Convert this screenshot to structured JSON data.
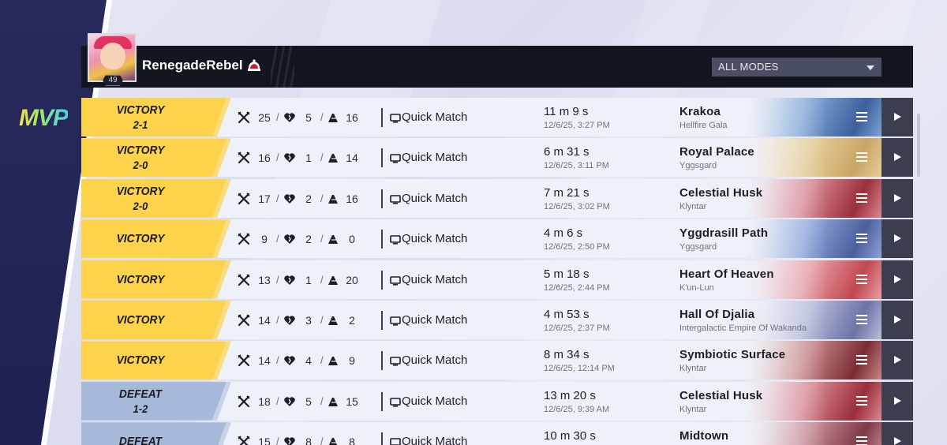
{
  "player": {
    "name": "RenegadeRebel",
    "level": "49",
    "avatar_icon": "hero-portrait-icon",
    "rank_icon": "rank-emblem-icon"
  },
  "mode_filter": {
    "selected": "ALL MODES"
  },
  "badge": {
    "mvp": "MVP"
  },
  "colors": {
    "victory": "#fcd34a",
    "defeat": "#a7b9d8",
    "header": "#14161f",
    "play_button": "#3b3e4e"
  },
  "matches": [
    {
      "result": "VICTORY",
      "score": "2-1",
      "kills": "25",
      "deaths": "5",
      "assists": "16",
      "mode": "Quick Match",
      "duration": "11 m 9 s",
      "date": "12/6/25, 3:27 PM",
      "map": "Krakoa",
      "region": "Hellfire Gala",
      "art": [
        "#c8dcf0",
        "#7fa6d6",
        "#3d5f9c"
      ]
    },
    {
      "result": "VICTORY",
      "score": "2-0",
      "kills": "16",
      "deaths": "1",
      "assists": "14",
      "mode": "Quick Match",
      "duration": "6 m 31 s",
      "date": "12/6/25, 3:11 PM",
      "map": "Royal Palace",
      "region": "Yggsgard",
      "art": [
        "#f5ecd6",
        "#e7cf9b",
        "#c9a564"
      ]
    },
    {
      "result": "VICTORY",
      "score": "2-0",
      "kills": "17",
      "deaths": "2",
      "assists": "16",
      "mode": "Quick Match",
      "duration": "7 m 21 s",
      "date": "12/6/25, 3:02 PM",
      "map": "Celestial Husk",
      "region": "Klyntar",
      "art": [
        "#f2d6da",
        "#d98a94",
        "#9b2f3c"
      ]
    },
    {
      "result": "VICTORY",
      "score": "",
      "kills": "9",
      "deaths": "2",
      "assists": "0",
      "mode": "Quick Match",
      "duration": "4 m 6 s",
      "date": "12/6/25, 2:50 PM",
      "map": "Yggdrasill Path",
      "region": "Yggsgard",
      "art": [
        "#d8e3f5",
        "#8ea6d8",
        "#4c5f9e"
      ]
    },
    {
      "result": "VICTORY",
      "score": "",
      "kills": "13",
      "deaths": "1",
      "assists": "20",
      "mode": "Quick Match",
      "duration": "5 m 18 s",
      "date": "12/6/25, 2:44 PM",
      "map": "Heart Of Heaven",
      "region": "K'un-Lun",
      "art": [
        "#f6e4ea",
        "#e9a0a8",
        "#c2474f"
      ]
    },
    {
      "result": "VICTORY",
      "score": "",
      "kills": "14",
      "deaths": "3",
      "assists": "2",
      "mode": "Quick Match",
      "duration": "4 m 53 s",
      "date": "12/6/25, 2:37 PM",
      "map": "Hall Of Djalia",
      "region": "Intergalactic Empire Of Wakanda",
      "art": [
        "#e6e8f4",
        "#b9bfdc",
        "#6d73a6"
      ]
    },
    {
      "result": "VICTORY",
      "score": "",
      "kills": "14",
      "deaths": "4",
      "assists": "9",
      "mode": "Quick Match",
      "duration": "8 m 34 s",
      "date": "12/6/25, 12:14 PM",
      "map": "Symbiotic Surface",
      "region": "Klyntar",
      "art": [
        "#efe0dc",
        "#c9898a",
        "#7a2c35"
      ]
    },
    {
      "result": "DEFEAT",
      "score": "1-2",
      "kills": "18",
      "deaths": "5",
      "assists": "15",
      "mode": "Quick Match",
      "duration": "13 m 20 s",
      "date": "12/6/25, 9:39 AM",
      "map": "Celestial Husk",
      "region": "Klyntar",
      "art": [
        "#f2d6da",
        "#d98a94",
        "#9b2f3c"
      ]
    },
    {
      "result": "DEFEAT",
      "score": "",
      "kills": "15",
      "deaths": "8",
      "assists": "8",
      "mode": "Quick Match",
      "duration": "10 m 30 s",
      "date": "",
      "map": "Midtown",
      "region": "",
      "art": [
        "#f0dfe2",
        "#c98d96",
        "#7e3a46"
      ]
    }
  ]
}
